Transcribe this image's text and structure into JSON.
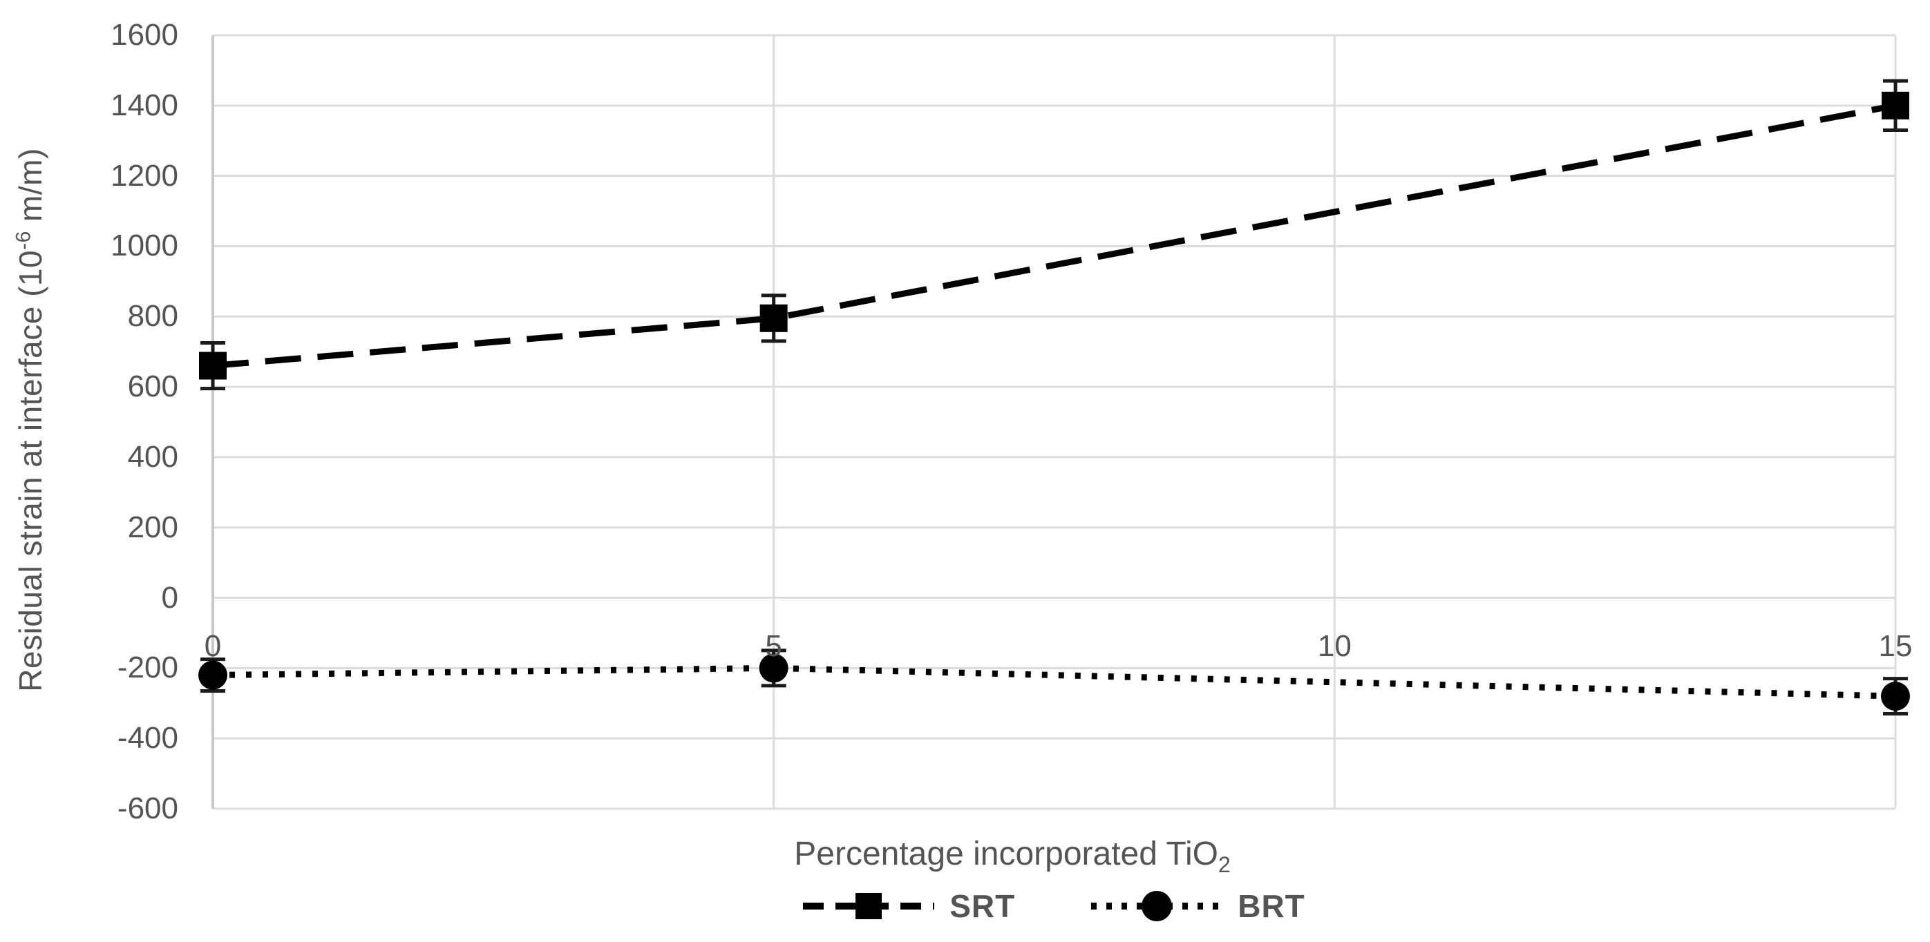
{
  "chart_data": {
    "type": "line",
    "title": "",
    "x_axis": {
      "title_prefix": "Percentage incorporated TiO",
      "title_sub": "2",
      "ticks": [
        0,
        5,
        10,
        15
      ],
      "lim": [
        0,
        15
      ]
    },
    "y_axis": {
      "title_prefix": "Residual strain at interface (10",
      "title_sup": "-6",
      "title_suffix": " m/m)",
      "ticks": [
        1600,
        1400,
        1200,
        1000,
        800,
        600,
        400,
        200,
        0,
        -200,
        -400,
        -600
      ],
      "lim": [
        -600,
        1600
      ]
    },
    "x": [
      0,
      5,
      15
    ],
    "series": [
      {
        "name": "SRT",
        "values": [
          660,
          795,
          1400
        ],
        "errors": [
          65,
          65,
          70
        ],
        "line_style": "dashed",
        "marker": "square",
        "color": "#000000"
      },
      {
        "name": "BRT",
        "values": [
          -220,
          -200,
          -280
        ],
        "errors": [
          45,
          50,
          50
        ],
        "line_style": "dotted",
        "marker": "circle",
        "color": "#000000"
      }
    ],
    "grid": true,
    "legend_position": "bottom-center"
  },
  "styling": {
    "background": "#FFFFFF",
    "grid_color": "#DCDCDC",
    "axis_color": "#C8C8C8",
    "text_color": "#545454",
    "series_color": "#000000"
  }
}
